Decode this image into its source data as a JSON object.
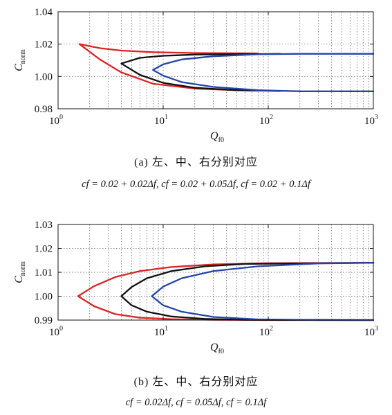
{
  "chart_data": [
    {
      "panel": "a",
      "type": "line",
      "xscale": "log",
      "xlim": [
        1,
        1000
      ],
      "ylim": [
        0.98,
        1.04
      ],
      "yticks": [
        "0.98",
        "1.00",
        "1.02",
        "1.04"
      ],
      "xticks": [
        {
          "base": "10",
          "exp": "0"
        },
        {
          "base": "10",
          "exp": "1"
        },
        {
          "base": "10",
          "exp": "2"
        },
        {
          "base": "10",
          "exp": "3"
        }
      ],
      "xlabel": {
        "main": "Q",
        "sub": "f0"
      },
      "ylabel": {
        "main": "C",
        "sub": "norm"
      },
      "grid": true,
      "series": [
        {
          "color": "#dd2222",
          "vertex": [
            1.6,
            1.02
          ],
          "upper": [
            [
              1.6,
              1.02
            ],
            [
              2.5,
              1.0175
            ],
            [
              4,
              1.016
            ],
            [
              8,
              1.015
            ],
            [
              20,
              1.0145
            ],
            [
              80,
              1.0143
            ]
          ],
          "lower": [
            [
              1.6,
              1.02
            ],
            [
              2.5,
              1.0105
            ],
            [
              4,
              1.0025
            ],
            [
              8,
              0.9955
            ],
            [
              20,
              0.9925
            ],
            [
              50,
              0.9915
            ],
            [
              80,
              0.9912
            ]
          ]
        },
        {
          "color": "#111111",
          "vertex": [
            4,
            1.008
          ],
          "upper": [
            [
              4,
              1.008
            ],
            [
              6,
              1.0115
            ],
            [
              10,
              1.0128
            ],
            [
              20,
              1.0135
            ],
            [
              50,
              1.0138
            ],
            [
              130,
              1.014
            ]
          ],
          "lower": [
            [
              4,
              1.008
            ],
            [
              6,
              1.001
            ],
            [
              10,
              0.996
            ],
            [
              20,
              0.993
            ],
            [
              50,
              0.9915
            ],
            [
              130,
              0.991
            ]
          ]
        },
        {
          "color": "#2244aa",
          "vertex": [
            8,
            1.004
          ],
          "upper": [
            [
              8,
              1.004
            ],
            [
              10,
              1.0075
            ],
            [
              15,
              1.0105
            ],
            [
              30,
              1.0125
            ],
            [
              80,
              1.0137
            ],
            [
              200,
              1.014
            ],
            [
              1000,
              1.014
            ]
          ],
          "lower": [
            [
              8,
              1.004
            ],
            [
              10,
              1.0005
            ],
            [
              15,
              0.9965
            ],
            [
              30,
              0.9935
            ],
            [
              80,
              0.9915
            ],
            [
              200,
              0.9908
            ],
            [
              1000,
              0.9908
            ]
          ]
        }
      ]
    },
    {
      "panel": "b",
      "type": "line",
      "xscale": "log",
      "xlim": [
        1,
        1000
      ],
      "ylim": [
        0.99,
        1.03
      ],
      "yticks": [
        "0.99",
        "1.00",
        "1.01",
        "1.02",
        "1.03"
      ],
      "xticks": [
        {
          "base": "10",
          "exp": "0"
        },
        {
          "base": "10",
          "exp": "1"
        },
        {
          "base": "10",
          "exp": "2"
        },
        {
          "base": "10",
          "exp": "3"
        }
      ],
      "xlabel": {
        "main": "Q",
        "sub": "f0"
      },
      "ylabel": {
        "main": "C",
        "sub": "norm"
      },
      "grid": true,
      "series": [
        {
          "color": "#dd2222",
          "vertex": [
            1.55,
            1.0
          ],
          "upper": [
            [
              1.55,
              1.0
            ],
            [
              2.2,
              1.0042
            ],
            [
              3.5,
              1.008
            ],
            [
              6,
              1.0105
            ],
            [
              12,
              1.0122
            ],
            [
              30,
              1.0133
            ],
            [
              100,
              1.0138
            ],
            [
              1000,
              1.014
            ]
          ],
          "lower": [
            [
              1.55,
              1.0
            ],
            [
              2.2,
              0.9958
            ],
            [
              3.5,
              0.9925
            ],
            [
              6,
              0.991
            ],
            [
              12,
              0.9904
            ],
            [
              30,
              0.9901
            ],
            [
              100,
              0.99
            ],
            [
              1000,
              0.99
            ]
          ]
        },
        {
          "color": "#111111",
          "vertex": [
            4,
            1.0
          ],
          "upper": [
            [
              4,
              1.0
            ],
            [
              5,
              1.0038
            ],
            [
              7,
              1.0075
            ],
            [
              12,
              1.0105
            ],
            [
              25,
              1.0125
            ],
            [
              60,
              1.0135
            ],
            [
              1000,
              1.014
            ]
          ],
          "lower": [
            [
              4,
              1.0
            ],
            [
              5,
              0.9962
            ],
            [
              7,
              0.9935
            ],
            [
              12,
              0.9915
            ],
            [
              25,
              0.9905
            ],
            [
              60,
              0.9901
            ],
            [
              1000,
              0.99
            ]
          ]
        },
        {
          "color": "#2244aa",
          "vertex": [
            7.8,
            1.0
          ],
          "upper": [
            [
              7.8,
              1.0
            ],
            [
              10,
              1.004
            ],
            [
              15,
              1.0075
            ],
            [
              30,
              1.0105
            ],
            [
              80,
              1.0125
            ],
            [
              300,
              1.0137
            ],
            [
              1000,
              1.014
            ]
          ],
          "lower": [
            [
              7.8,
              1.0
            ],
            [
              10,
              0.9962
            ],
            [
              15,
              0.9935
            ],
            [
              30,
              0.9913
            ],
            [
              80,
              0.9903
            ],
            [
              300,
              0.99
            ],
            [
              1000,
              0.99
            ]
          ]
        }
      ]
    }
  ],
  "captions": {
    "a_title": "(a) 左、中、右分别对应",
    "a_formula": "cf = 0.02 + 0.02Δf,  cf = 0.02 + 0.05Δf,  cf = 0.02 + 0.1Δf",
    "b_title": "(b) 左、中、右分别对应",
    "b_formula": "cf = 0.02Δf,  cf = 0.05Δf,  cf = 0.1Δf"
  }
}
